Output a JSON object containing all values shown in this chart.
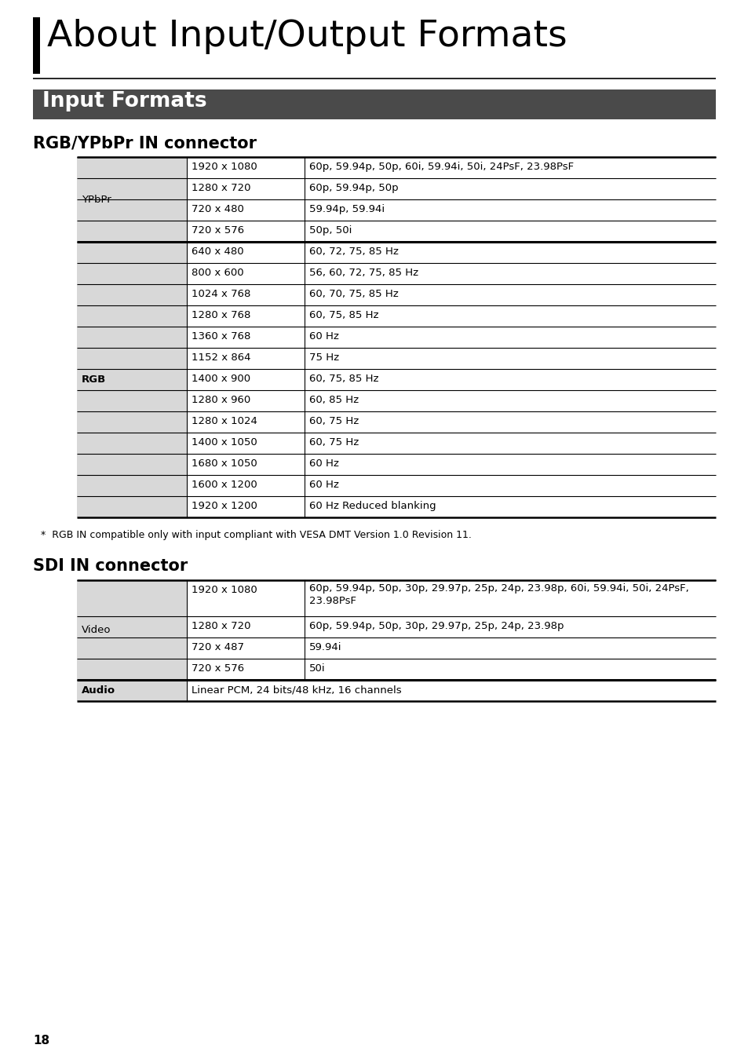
{
  "page_title": "About Input/Output Formats",
  "section1_title": "Input Formats",
  "subsection1_title": "RGB/YPbPr IN connector",
  "subsection2_title": "SDI IN connector",
  "footnote": "*  RGB IN compatible only with input compliant with VESA DMT Version 1.0 Revision 11.",
  "page_number": "18",
  "bg_color": "#ffffff",
  "section_bar_color": "#4a4a4a",
  "left_col_bg": "#d8d8d8",
  "rgb_ypbpr_table": {
    "groups": [
      {
        "label": "YPbPr",
        "rows": [
          [
            "1920 x 1080",
            "60p, 59.94p, 50p, 60i, 59.94i, 50i, 24PsF, 23.98PsF"
          ],
          [
            "1280 x 720",
            "60p, 59.94p, 50p"
          ],
          [
            "720 x 480",
            "59.94p, 59.94i"
          ],
          [
            "720 x 576",
            "50p, 50i"
          ]
        ]
      },
      {
        "label": "RGB",
        "rows": [
          [
            "640 x 480",
            "60, 72, 75, 85 Hz"
          ],
          [
            "800 x 600",
            "56, 60, 72, 75, 85 Hz"
          ],
          [
            "1024 x 768",
            "60, 70, 75, 85 Hz"
          ],
          [
            "1280 x 768",
            "60, 75, 85 Hz"
          ],
          [
            "1360 x 768",
            "60 Hz"
          ],
          [
            "1152 x 864",
            "75 Hz"
          ],
          [
            "1400 x 900",
            "60, 75, 85 Hz"
          ],
          [
            "1280 x 960",
            "60, 85 Hz"
          ],
          [
            "1280 x 1024",
            "60, 75 Hz"
          ],
          [
            "1400 x 1050",
            "60, 75 Hz"
          ],
          [
            "1680 x 1050",
            "60 Hz"
          ],
          [
            "1600 x 1200",
            "60 Hz"
          ],
          [
            "1920 x 1200",
            "60 Hz Reduced blanking"
          ]
        ]
      }
    ]
  },
  "sdi_table": {
    "groups": [
      {
        "label": "Video",
        "rows": [
          [
            "1920 x 1080",
            "60p, 59.94p, 50p, 30p, 29.97p, 25p, 24p, 23.98p, 60i, 59.94i, 50i, 24PsF,\n23.98PsF"
          ],
          [
            "1280 x 720",
            "60p, 59.94p, 50p, 30p, 29.97p, 25p, 24p, 23.98p"
          ],
          [
            "720 x 487",
            "59.94i"
          ],
          [
            "720 x 576",
            "50i"
          ]
        ]
      },
      {
        "label": "Audio",
        "rows": [
          [
            "Linear PCM, 24 bits/48 kHz, 16 channels"
          ]
        ]
      }
    ]
  }
}
